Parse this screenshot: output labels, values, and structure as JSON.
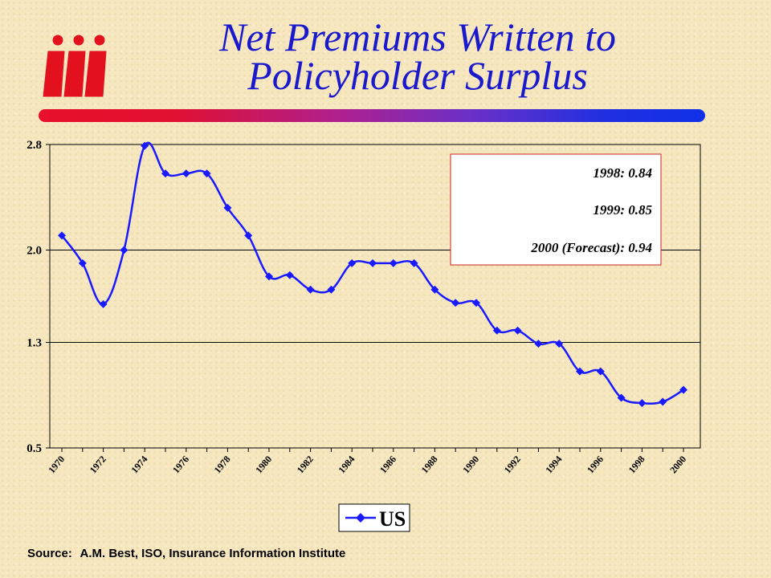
{
  "header": {
    "title_line1": "Net Premiums Written to",
    "title_line2": "Policyholder Surplus",
    "logo_text": "iii",
    "accent_colors": [
      "#e8102a",
      "#b0208e",
      "#1030e8"
    ]
  },
  "annotation": {
    "lines": [
      "1998: 0.84",
      "1999: 0.85",
      "2000 (Forecast): 0.94"
    ],
    "border_color": "#cc2020"
  },
  "legend": {
    "label": "US",
    "marker_color": "#1a1aff"
  },
  "source": {
    "label": "Source:",
    "text": "A.M. Best, ISO, Insurance Information Institute"
  },
  "chart_data": {
    "type": "line",
    "title": "Net Premiums Written to Policyholder Surplus",
    "xlabel": "",
    "ylabel": "",
    "ylim": [
      0.5,
      2.8
    ],
    "yticks": [
      "0.5",
      "1.3",
      "2.0",
      "2.8"
    ],
    "grid": true,
    "legend_position": "bottom",
    "x_tick_labels": [
      "1970",
      "1972",
      "1974",
      "1976",
      "1978",
      "1980",
      "1982",
      "1984",
      "1986",
      "1988",
      "1990",
      "1992",
      "1994",
      "1996",
      "1998",
      "2000"
    ],
    "x": [
      1970,
      1971,
      1972,
      1973,
      1974,
      1975,
      1976,
      1977,
      1978,
      1979,
      1980,
      1981,
      1982,
      1983,
      1984,
      1985,
      1986,
      1987,
      1988,
      1989,
      1990,
      1991,
      1992,
      1993,
      1994,
      1995,
      1996,
      1997,
      1998,
      1999,
      2000
    ],
    "series": [
      {
        "name": "US",
        "color": "#1a1aff",
        "values": [
          2.11,
          1.9,
          1.59,
          2.0,
          2.79,
          2.58,
          2.58,
          2.58,
          2.32,
          2.11,
          1.8,
          1.81,
          1.7,
          1.7,
          1.9,
          1.9,
          1.9,
          1.9,
          1.7,
          1.6,
          1.6,
          1.39,
          1.39,
          1.29,
          1.29,
          1.08,
          1.08,
          0.88,
          0.84,
          0.85,
          0.94
        ]
      }
    ]
  }
}
